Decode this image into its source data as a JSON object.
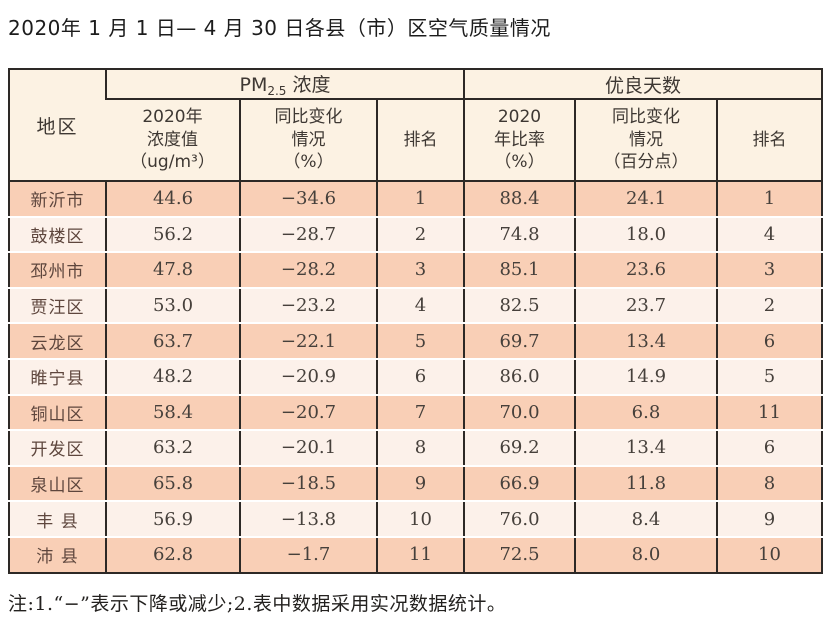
{
  "title": "2020年 1 月 1 日— 4 月 30 日各县（市）区空气质量情况",
  "header": {
    "region": "地区",
    "pm25_group": {
      "base": "PM",
      "sub": "2.5",
      "rest": " 浓度"
    },
    "days_group": "优良天数",
    "sub_pm_value": "2020年\n浓度值\n（ug/m³）",
    "sub_pm_change": "同比变化\n情况\n（%）",
    "sub_pm_rank": "排名",
    "sub_days_ratio": "2020\n年比率\n（%）",
    "sub_days_change": "同比变化\n情况\n（百分点）",
    "sub_days_rank": "排名"
  },
  "note": "注:1.“−”表示下降或减少;2.表中数据采用实况数据统计。",
  "colors": {
    "row_peach": "#f9cfb6",
    "row_light": "#fcf1ea",
    "header_cream": "#fcf2e3",
    "border_dark": "#2d2926"
  },
  "chart_data": {
    "type": "table",
    "title": "2020年 1 月 1 日— 4 月 30 日各县（市）区空气质量情况",
    "column_groups": [
      "PM2.5 浓度",
      "优良天数"
    ],
    "columns": [
      "地区",
      "PM2.5 2020年浓度值（ug/m³）",
      "PM2.5 同比变化情况（%）",
      "PM2.5 排名",
      "优良天数 2020年比率（%）",
      "优良天数 同比变化情况（百分点）",
      "优良天数 排名"
    ],
    "col_keys": [
      "cell-region",
      "cell-pm25-value",
      "cell-pm25-change",
      "cell-pm25-rank",
      "cell-days-ratio",
      "cell-days-change",
      "cell-days-rank"
    ],
    "rows": [
      [
        "新沂市",
        "44.6",
        "−34.6",
        "1",
        "88.4",
        "24.1",
        "1"
      ],
      [
        "鼓楼区",
        "56.2",
        "−28.7",
        "2",
        "74.8",
        "18.0",
        "4"
      ],
      [
        "邳州市",
        "47.8",
        "−28.2",
        "3",
        "85.1",
        "23.6",
        "3"
      ],
      [
        "贾汪区",
        "53.0",
        "−23.2",
        "4",
        "82.5",
        "23.7",
        "2"
      ],
      [
        "云龙区",
        "63.7",
        "−22.1",
        "5",
        "69.7",
        "13.4",
        "6"
      ],
      [
        "睢宁县",
        "48.2",
        "−20.9",
        "6",
        "86.0",
        "14.9",
        "5"
      ],
      [
        "铜山区",
        "58.4",
        "−20.7",
        "7",
        "70.0",
        "6.8",
        "11"
      ],
      [
        "开发区",
        "63.2",
        "−20.1",
        "8",
        "69.2",
        "13.4",
        "6"
      ],
      [
        "泉山区",
        "65.8",
        "−18.5",
        "9",
        "66.9",
        "11.8",
        "8"
      ],
      [
        "丰 县",
        "56.9",
        "−13.8",
        "10",
        "76.0",
        "8.4",
        "9"
      ],
      [
        "沛 县",
        "62.8",
        "−1.7",
        "11",
        "72.5",
        "8.0",
        "10"
      ]
    ]
  }
}
